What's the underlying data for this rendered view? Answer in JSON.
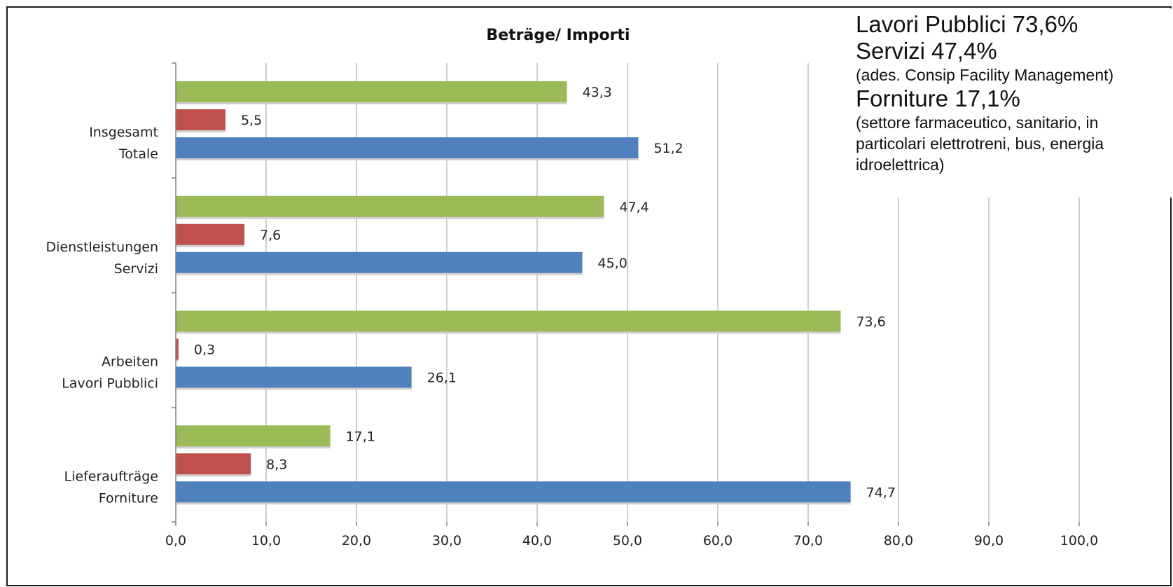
{
  "chart_data": {
    "type": "bar",
    "orientation": "horizontal",
    "title": "Beträge/ Importi",
    "categories": [
      [
        "Insgesamt",
        "Totale"
      ],
      [
        "Dienstleistungen",
        "Servizi"
      ],
      [
        "Arbeiten",
        "Lavori Pubblici"
      ],
      [
        "Lieferaufträge",
        "Forniture"
      ]
    ],
    "series": [
      {
        "values": [
          43.3,
          47.4,
          73.6,
          17.1
        ],
        "labels": [
          "43,3",
          "47,4",
          "73,6",
          "17,1"
        ],
        "color": "#9bbb59"
      },
      {
        "values": [
          5.5,
          7.6,
          0.3,
          8.3
        ],
        "labels": [
          "5,5",
          "7,6",
          "0,3",
          "8,3"
        ],
        "color": "#c0504d"
      },
      {
        "values": [
          51.2,
          45.0,
          26.1,
          74.7
        ],
        "labels": [
          "51,2",
          "45,0",
          "26,1",
          "74,7"
        ],
        "color": "#4f81bd"
      }
    ],
    "xlim": [
      0,
      100
    ],
    "xticks": [
      0,
      10,
      20,
      30,
      40,
      50,
      60,
      70,
      80,
      90,
      100
    ],
    "xtick_labels": [
      "0,0",
      "10,0",
      "20,0",
      "30,0",
      "40,0",
      "50,0",
      "60,0",
      "70,0",
      "80,0",
      "90,0",
      "100,0"
    ],
    "grid": "vertical",
    "legend": "none"
  },
  "overlay": {
    "line1": "Lavori Pubblici 73,6%",
    "line2": "Servizi  47,4%",
    "line3": "(ades. Consip Facility Management)",
    "line4": "Forniture  17,1%",
    "line5": " (settore farmaceutico, sanitario, in",
    "line6": "particolari elettrotreni, bus, energia",
    "line7": "idroelettrica)"
  }
}
